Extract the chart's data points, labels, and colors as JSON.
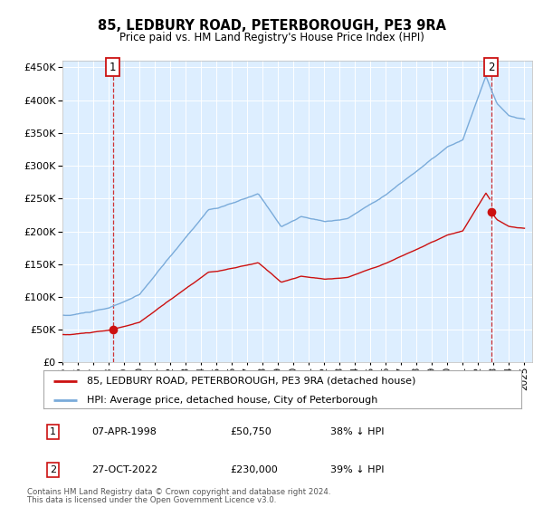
{
  "title": "85, LEDBURY ROAD, PETERBOROUGH, PE3 9RA",
  "subtitle": "Price paid vs. HM Land Registry's House Price Index (HPI)",
  "legend_line1": "85, LEDBURY ROAD, PETERBOROUGH, PE3 9RA (detached house)",
  "legend_line2": "HPI: Average price, detached house, City of Peterborough",
  "sale1_date": "07-APR-1998",
  "sale1_price": 50750,
  "sale1_label": "38% ↓ HPI",
  "sale2_date": "27-OCT-2022",
  "sale2_price": 230000,
  "sale2_label": "39% ↓ HPI",
  "footer": "Contains HM Land Registry data © Crown copyright and database right 2024.\nThis data is licensed under the Open Government Licence v3.0.",
  "hpi_color": "#7aabda",
  "sale_color": "#cc1111",
  "plot_bg": "#ddeeff",
  "ylim": [
    0,
    460000
  ],
  "yticks": [
    0,
    50000,
    100000,
    150000,
    200000,
    250000,
    300000,
    350000,
    400000,
    450000
  ],
  "sale1_x": 1998.27,
  "sale2_x": 2022.83,
  "xstart": 1995.0,
  "xend": 2025.5
}
